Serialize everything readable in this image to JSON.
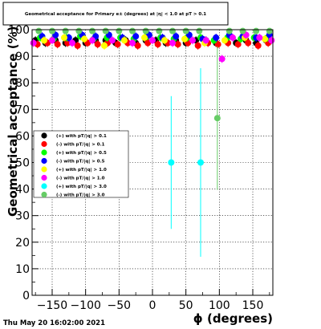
{
  "chart_data": {
    "type": "scatter",
    "title": "Geometrical acceptance for Primary e± (degrees) at |η| < 1.0 at pT > 0.1",
    "xlabel": "ϕ (degrees)",
    "ylabel": "Geometrical acceptance (%)",
    "xlim": [
      -180,
      180
    ],
    "ylim": [
      0,
      100
    ],
    "xticks": [
      -150,
      -100,
      -50,
      0,
      50,
      100,
      150
    ],
    "yticks": [
      0,
      10,
      20,
      30,
      40,
      50,
      60,
      70,
      80,
      90,
      100
    ],
    "grid": true,
    "legend_position": "left",
    "timestamp": "Thu May 20 16:02:00 2021",
    "series": [
      {
        "name": "(+) with pT/|q| > 0.1",
        "color": "#000000",
        "marker": "circle",
        "x": [
          -175,
          -160,
          -145,
          -130,
          -115,
          -100,
          -85,
          -70,
          -55,
          -40,
          -25,
          -10,
          5,
          20,
          35,
          50,
          65,
          80,
          95,
          110,
          125,
          140,
          155,
          170
        ],
        "y": [
          96,
          95,
          96,
          95,
          96,
          95,
          96,
          96,
          95,
          96,
          95,
          96,
          96,
          95,
          96,
          95,
          96,
          96,
          95,
          96,
          95,
          96,
          95,
          96
        ]
      },
      {
        "name": "(-) with pT/|q| > 0.1",
        "color": "#ff0000",
        "marker": "circle",
        "x": [
          -172,
          -157,
          -142,
          -127,
          -112,
          -97,
          -82,
          -67,
          -52,
          -37,
          -22,
          -7,
          8,
          23,
          38,
          53,
          68,
          83,
          98,
          113,
          128,
          143,
          158,
          173
        ],
        "y": [
          94.5,
          95,
          94.5,
          95,
          94,
          95,
          94.5,
          95,
          94.5,
          95,
          94,
          95,
          94.5,
          95,
          94.5,
          95,
          94,
          95,
          94.5,
          95,
          94.5,
          95,
          94,
          95
        ]
      },
      {
        "name": "(+) with pT/|q| > 0.5",
        "color": "#00ff00",
        "marker": "circle",
        "x": [
          -168,
          -148,
          -128,
          -108,
          -88,
          -68,
          -48,
          -28,
          -8,
          12,
          32,
          52,
          72,
          92,
          112,
          132,
          152,
          172
        ],
        "y": [
          97,
          96.5,
          97,
          97.5,
          96.5,
          97,
          97,
          96.5,
          97.5,
          97,
          96.5,
          97,
          97,
          96,
          97,
          96.5,
          97,
          97
        ]
      },
      {
        "name": "(-) with pT/|q| > 0.5",
        "color": "#0000ff",
        "marker": "circle",
        "x": [
          -165,
          -145,
          -125,
          -105,
          -85,
          -65,
          -45,
          -25,
          -5,
          15,
          35,
          55,
          75,
          95,
          115,
          135,
          155,
          175
        ],
        "y": [
          97.5,
          98,
          97,
          98,
          97.5,
          98,
          97,
          97.5,
          98,
          97,
          97.5,
          98,
          96.5,
          97,
          98,
          97.5,
          97,
          98
        ]
      },
      {
        "name": "(+) with pT/|q| > 1.0",
        "color": "#ffff00",
        "marker": "circle",
        "x": [
          -162,
          -132,
          -102,
          -72,
          -42,
          -12,
          18,
          48,
          78,
          108,
          138,
          168
        ],
        "y": [
          96,
          97,
          96.5,
          94,
          96,
          97,
          96,
          96.5,
          95,
          96,
          97,
          96.5
        ]
      },
      {
        "name": "(-) with pT/|q| > 1.0",
        "color": "#ff00ff",
        "marker": "circle",
        "x": [
          -178,
          -150,
          -120,
          -90,
          -60,
          -30,
          0,
          30,
          60,
          80,
          104,
          120,
          140,
          160,
          178
        ],
        "y": [
          95,
          96,
          95,
          96,
          96,
          95,
          96,
          95,
          96,
          96,
          89,
          97,
          98,
          97,
          96
        ]
      },
      {
        "name": "(+) with pT/|q| > 3.0",
        "color": "#00ffff",
        "marker": "circle",
        "x": [
          28,
          72
        ],
        "y": [
          50,
          50
        ],
        "yerr": [
          25,
          35.5
        ]
      },
      {
        "name": "(-) with pT/|q| > 3.0",
        "color": "#66cc66",
        "marker": "circle",
        "x": [
          -170,
          -150,
          -130,
          -110,
          -90,
          -70,
          -50,
          -30,
          -10,
          10,
          30,
          50,
          70,
          97,
          115,
          135,
          155,
          175
        ],
        "y": [
          99.5,
          99.5,
          99.5,
          99.5,
          99.5,
          99.5,
          99.5,
          99.5,
          99.5,
          99.5,
          99.5,
          99.5,
          99.5,
          66.7,
          99.5,
          99.5,
          99.5,
          99.5
        ],
        "yerr": [
          0,
          0,
          0,
          0,
          0,
          0,
          0,
          0,
          0,
          0,
          0,
          0,
          0,
          27,
          0,
          0,
          0,
          0
        ]
      }
    ]
  }
}
